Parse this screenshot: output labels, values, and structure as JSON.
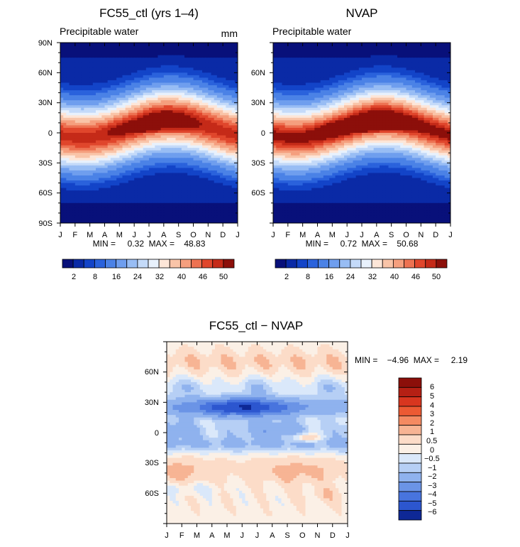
{
  "chart_data": [
    {
      "type": "heatmap",
      "title": "FC55_ctl (yrs 1-4)",
      "subtitle": "Precipitable water",
      "units": "mm",
      "x_ticks": [
        "J",
        "F",
        "M",
        "A",
        "M",
        "J",
        "J",
        "A",
        "S",
        "O",
        "N",
        "D",
        "J"
      ],
      "y_ticks": [
        "90N",
        "60N",
        "30N",
        "0",
        "30S",
        "60S",
        "90S"
      ],
      "xlim": [
        0,
        12
      ],
      "ylim": [
        -90,
        90
      ],
      "stats_text": "MIN =     0.32  MAX =    48.83",
      "colorbar_labels": [
        "2",
        "8",
        "16",
        "24",
        "32",
        "40",
        "46",
        "50"
      ],
      "colorbar_levels": [
        2,
        4,
        6,
        8,
        12,
        16,
        20,
        24,
        28,
        32,
        36,
        40,
        43,
        46,
        48,
        50
      ],
      "colormap": "blue-white-red",
      "itcz_peak_month": 7.5,
      "itcz_peak_lat": 8,
      "itcz_amplitude_deg": 12
    },
    {
      "type": "heatmap",
      "title": "NVAP",
      "subtitle": "Precipitable water",
      "x_ticks": [
        "J",
        "F",
        "M",
        "A",
        "M",
        "J",
        "J",
        "A",
        "S",
        "O",
        "N",
        "D",
        "J"
      ],
      "y_ticks": [
        "60N",
        "30N",
        "0",
        "30S",
        "60S"
      ],
      "xlim": [
        0,
        12
      ],
      "ylim": [
        -90,
        90
      ],
      "stats_text": "MIN =     0.72  MAX =    50.68",
      "colorbar_labels": [
        "2",
        "8",
        "16",
        "24",
        "32",
        "40",
        "46",
        "50"
      ],
      "colorbar_levels": [
        2,
        4,
        6,
        8,
        12,
        16,
        20,
        24,
        28,
        32,
        36,
        40,
        43,
        46,
        48,
        50
      ],
      "colormap": "blue-white-red",
      "itcz_peak_month": 7.5,
      "itcz_peak_lat": 8,
      "itcz_amplitude_deg": 12
    },
    {
      "type": "heatmap",
      "title": "FC55_ctl - NVAP",
      "x_ticks": [
        "J",
        "F",
        "M",
        "A",
        "M",
        "J",
        "J",
        "A",
        "S",
        "O",
        "N",
        "D",
        "J"
      ],
      "y_ticks": [
        "60N",
        "30N",
        "0",
        "30S",
        "60S"
      ],
      "xlim": [
        0,
        12
      ],
      "ylim": [
        -90,
        90
      ],
      "stats_text": "MIN =    -4.96  MAX =     2.19",
      "colorbar_labels": [
        "6",
        "5",
        "4",
        "3",
        "2",
        "1",
        "0.5",
        "0",
        "-0.5",
        "-1",
        "-2",
        "-3",
        "-4",
        "-5",
        "-6"
      ],
      "colormap": "blue-white-red diverging"
    }
  ],
  "colors": {
    "scale16": [
      "#08107a",
      "#0a2aa6",
      "#1344c8",
      "#2a62dc",
      "#4b82e6",
      "#6f9eee",
      "#98bdf4",
      "#c4daf9",
      "#e8f1fc",
      "#fde6d8",
      "#f9c4a8",
      "#f59f7e",
      "#ed7252",
      "#e0462c",
      "#c52a18",
      "#8c0f0a"
    ],
    "diverging": [
      "#8c0f0a",
      "#b52014",
      "#d8361f",
      "#ec5a33",
      "#f48a62",
      "#f7b494",
      "#fcdcc8",
      "#fbf0e6",
      "#dae8fa",
      "#b6cff5",
      "#8fb2ee",
      "#6b94e6",
      "#4874de",
      "#2c56cf",
      "#0e2896"
    ]
  }
}
